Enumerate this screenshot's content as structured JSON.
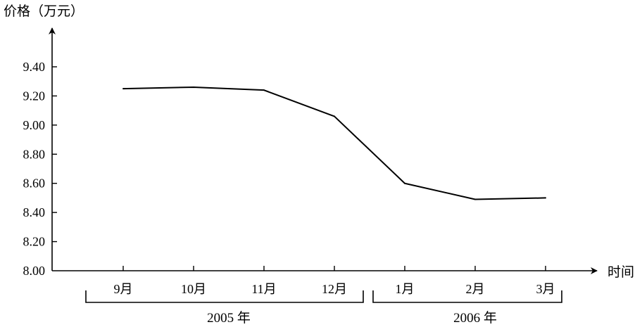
{
  "chart_data": {
    "type": "line",
    "ylabel": "价格（万元）",
    "xlabel": "时间",
    "ylim": [
      8.0,
      9.6
    ],
    "yticks": [
      "8.00",
      "8.20",
      "8.40",
      "8.60",
      "8.80",
      "9.00",
      "9.20",
      "9.40"
    ],
    "categories": [
      "9月",
      "10月",
      "11月",
      "12月",
      "1月",
      "2月",
      "3月"
    ],
    "series": [
      {
        "values": [
          9.25,
          9.26,
          9.24,
          9.06,
          8.6,
          8.49,
          8.5
        ]
      }
    ],
    "groups": [
      {
        "label": "2005 年",
        "from": 0,
        "to": 3
      },
      {
        "label": "2006 年",
        "from": 4,
        "to": 6
      }
    ],
    "grid": false,
    "legend": "none"
  }
}
